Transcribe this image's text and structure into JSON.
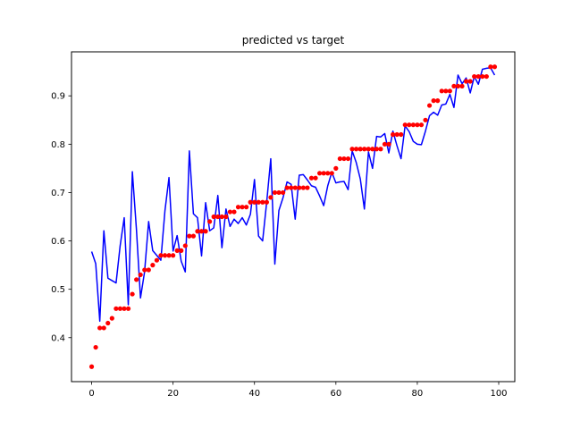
{
  "chart_data": {
    "type": "line",
    "title": "predicted vs target",
    "xlabel": "",
    "ylabel": "",
    "xlim": [
      -4.95,
      103.95
    ],
    "ylim": [
      0.309,
      0.991
    ],
    "x_ticks": [
      0,
      20,
      40,
      60,
      80,
      100
    ],
    "y_ticks": [
      0.4,
      0.5,
      0.6,
      0.7,
      0.8,
      0.9
    ],
    "grid": false,
    "legend": "none",
    "colors": {
      "predicted": "#0000ff",
      "target": "#ff0000",
      "axes": "#000000"
    },
    "series": [
      {
        "type": "line",
        "color": "#0000ff",
        "x": [
          0,
          1,
          2,
          3,
          4,
          5,
          6,
          7,
          8,
          9,
          10,
          11,
          12,
          13,
          14,
          15,
          16,
          17,
          18,
          19,
          20,
          21,
          22,
          23,
          24,
          25,
          26,
          27,
          28,
          29,
          30,
          31,
          32,
          33,
          34,
          35,
          36,
          37,
          38,
          39,
          40,
          41,
          42,
          43,
          44,
          45,
          46,
          47,
          48,
          49,
          50,
          51,
          52,
          53,
          54,
          55,
          56,
          57,
          58,
          59,
          60,
          61,
          62,
          63,
          64,
          65,
          66,
          67,
          68,
          69,
          70,
          71,
          72,
          73,
          74,
          75,
          76,
          77,
          78,
          79,
          80,
          81,
          82,
          83,
          84,
          85,
          86,
          87,
          88,
          89,
          90,
          91,
          92,
          93,
          94,
          95,
          96,
          97,
          98,
          99
        ],
        "values": [
          0.578,
          0.553,
          0.434,
          0.621,
          0.523,
          0.518,
          0.513,
          0.59,
          0.648,
          0.468,
          0.743,
          0.624,
          0.482,
          0.536,
          0.64,
          0.58,
          0.57,
          0.56,
          0.662,
          0.731,
          0.579,
          0.611,
          0.558,
          0.536,
          0.786,
          0.656,
          0.648,
          0.569,
          0.679,
          0.621,
          0.627,
          0.694,
          0.586,
          0.666,
          0.63,
          0.645,
          0.636,
          0.648,
          0.633,
          0.655,
          0.727,
          0.61,
          0.6,
          0.68,
          0.77,
          0.552,
          0.663,
          0.689,
          0.722,
          0.717,
          0.645,
          0.736,
          0.737,
          0.726,
          0.714,
          0.711,
          0.693,
          0.673,
          0.714,
          0.742,
          0.72,
          0.722,
          0.723,
          0.706,
          0.786,
          0.762,
          0.728,
          0.666,
          0.784,
          0.75,
          0.816,
          0.815,
          0.822,
          0.782,
          0.827,
          0.797,
          0.77,
          0.838,
          0.826,
          0.806,
          0.8,
          0.799,
          0.827,
          0.859,
          0.866,
          0.86,
          0.881,
          0.883,
          0.903,
          0.876,
          0.943,
          0.925,
          0.937,
          0.906,
          0.94,
          0.924,
          0.955,
          0.957,
          0.958,
          0.943
        ]
      },
      {
        "type": "scatter",
        "color": "#ff0000",
        "x": [
          0,
          1,
          2,
          3,
          4,
          5,
          6,
          7,
          8,
          9,
          10,
          11,
          12,
          13,
          14,
          15,
          16,
          17,
          18,
          19,
          20,
          21,
          22,
          23,
          24,
          25,
          26,
          27,
          28,
          29,
          30,
          31,
          32,
          33,
          34,
          35,
          36,
          37,
          38,
          39,
          40,
          41,
          42,
          43,
          44,
          45,
          46,
          47,
          48,
          49,
          50,
          51,
          52,
          53,
          54,
          55,
          56,
          57,
          58,
          59,
          60,
          61,
          62,
          63,
          64,
          65,
          66,
          67,
          68,
          69,
          70,
          71,
          72,
          73,
          74,
          75,
          76,
          77,
          78,
          79,
          80,
          81,
          82,
          83,
          84,
          85,
          86,
          87,
          88,
          89,
          90,
          91,
          92,
          93,
          94,
          95,
          96,
          97,
          98,
          99
        ],
        "values": [
          0.34,
          0.38,
          0.42,
          0.42,
          0.43,
          0.44,
          0.46,
          0.46,
          0.46,
          0.46,
          0.49,
          0.52,
          0.53,
          0.54,
          0.54,
          0.55,
          0.56,
          0.57,
          0.57,
          0.57,
          0.57,
          0.58,
          0.58,
          0.59,
          0.61,
          0.61,
          0.62,
          0.62,
          0.62,
          0.64,
          0.65,
          0.65,
          0.65,
          0.65,
          0.66,
          0.66,
          0.67,
          0.67,
          0.67,
          0.68,
          0.68,
          0.68,
          0.68,
          0.68,
          0.69,
          0.7,
          0.7,
          0.7,
          0.71,
          0.71,
          0.71,
          0.71,
          0.71,
          0.71,
          0.73,
          0.73,
          0.74,
          0.74,
          0.74,
          0.74,
          0.75,
          0.77,
          0.77,
          0.77,
          0.79,
          0.79,
          0.79,
          0.79,
          0.79,
          0.79,
          0.79,
          0.79,
          0.8,
          0.8,
          0.82,
          0.82,
          0.82,
          0.84,
          0.84,
          0.84,
          0.84,
          0.84,
          0.85,
          0.88,
          0.89,
          0.89,
          0.91,
          0.91,
          0.91,
          0.92,
          0.92,
          0.92,
          0.93,
          0.93,
          0.94,
          0.94,
          0.94,
          0.94,
          0.96,
          0.96
        ]
      }
    ]
  }
}
